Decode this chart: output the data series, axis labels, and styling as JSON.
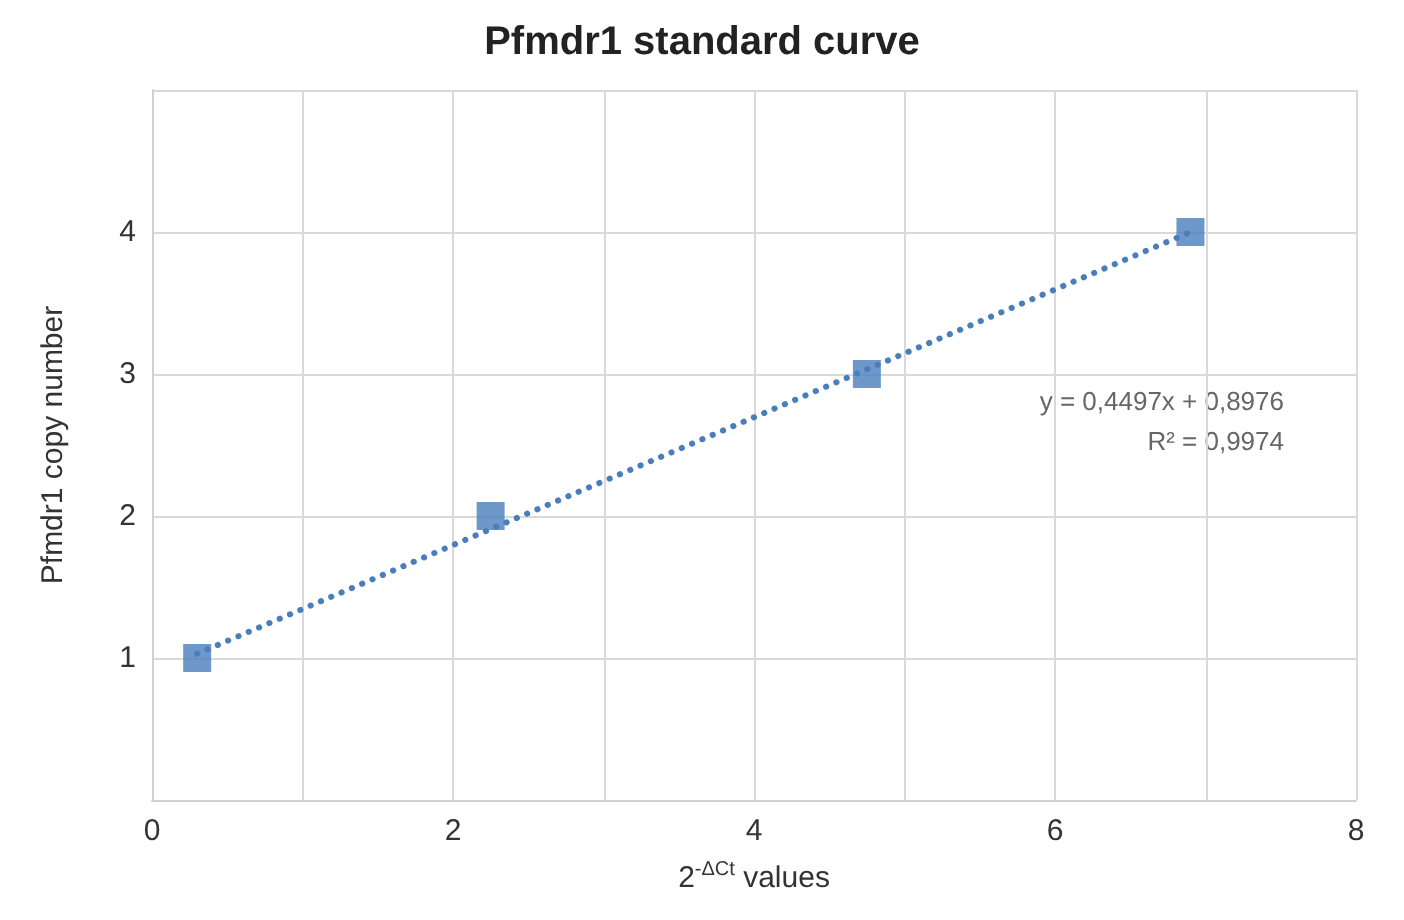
{
  "chart_data": {
    "type": "scatter",
    "title": "Pfmdr1 standard curve",
    "xlabel": "2$^{-ΔCt}$ values",
    "ylabel": "Pfmdr1 copy number",
    "annotations": [
      "y = 0,4497x + 0,8976",
      "R² = 0,9974"
    ],
    "series": [
      {
        "color": "#4a7ebb",
        "x": [
          0.3,
          2.25,
          4.75,
          6.9
        ],
        "values": [
          1,
          2,
          3,
          4
        ],
        "marker": "square"
      },
      {
        "type": "line",
        "color": "#4a7ebb",
        "x": [
          0.3,
          6.9
        ],
        "values": [
          1.03,
          4.0
        ],
        "line_style": "dotted",
        "marker": "none"
      }
    ],
    "xlim": [
      0,
      8
    ],
    "xticks": [
      0,
      {
        "value": 1,
        "label": null
      },
      2,
      {
        "value": 3,
        "label": null
      },
      4,
      {
        "value": 5,
        "label": null
      },
      6,
      {
        "value": 7,
        "label": null
      },
      8
    ],
    "ylim": [
      0,
      5
    ],
    "yticks": [
      {
        "value": 0,
        "label": null
      },
      1,
      2,
      3,
      4,
      {
        "value": 5,
        "label": null
      }
    ],
    "grid": true
  }
}
